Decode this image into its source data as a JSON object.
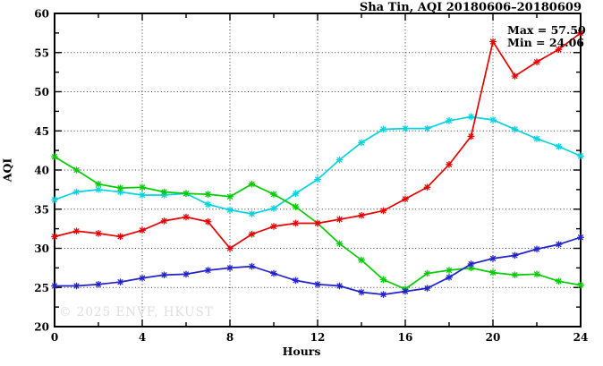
{
  "title": "Sha Tin, AQI 20180606–20180609",
  "legend": {
    "max_label": "Max = 57.50",
    "min_label": "Min = 24.06"
  },
  "watermark": "© 2025 ENVF, HKUST",
  "chart_data": {
    "type": "line",
    "title": "Sha Tin, AQI 20180606–20180609",
    "xlabel": "Hours",
    "ylabel": "AQI",
    "xlim": [
      0,
      24
    ],
    "ylim": [
      20,
      60
    ],
    "x_major_ticks": [
      0,
      4,
      8,
      12,
      16,
      20,
      24
    ],
    "x_minor_ticks": [
      2,
      6,
      10,
      14,
      18,
      22
    ],
    "y_major_ticks": [
      20,
      25,
      30,
      35,
      40,
      45,
      50,
      55,
      60
    ],
    "y_minor_ticks": [
      22.5,
      27.5,
      32.5,
      37.5,
      42.5,
      47.5,
      52.5,
      57.5
    ],
    "grid": true,
    "legend_position": "top-right",
    "max": 57.5,
    "min": 24.06,
    "x": [
      0,
      1,
      2,
      3,
      4,
      5,
      6,
      7,
      8,
      9,
      10,
      11,
      12,
      13,
      14,
      15,
      16,
      17,
      18,
      19,
      20,
      21,
      22,
      23,
      24
    ],
    "series": [
      {
        "name": "series-cyan",
        "color": "#00d4e0",
        "values": [
          36.2,
          37.2,
          37.5,
          37.2,
          36.8,
          36.8,
          37.0,
          35.6,
          34.9,
          34.4,
          35.1,
          37.0,
          38.8,
          41.3,
          43.5,
          45.2,
          45.3,
          45.3,
          46.3,
          46.8,
          46.4,
          45.2,
          44.0,
          43.0,
          41.8
        ]
      },
      {
        "name": "series-green",
        "color": "#00cc00",
        "values": [
          41.7,
          40.0,
          38.2,
          37.7,
          37.8,
          37.2,
          37.0,
          36.9,
          36.6,
          38.2,
          36.9,
          35.3,
          33.2,
          30.6,
          28.5,
          26.0,
          24.8,
          26.8,
          27.2,
          27.5,
          26.9,
          26.6,
          26.7,
          25.8,
          25.3
        ]
      },
      {
        "name": "series-blue",
        "color": "#2222cc",
        "values": [
          25.2,
          25.2,
          25.4,
          25.7,
          26.2,
          26.6,
          26.7,
          27.2,
          27.5,
          27.7,
          26.8,
          25.9,
          25.4,
          25.2,
          24.4,
          24.1,
          24.5,
          24.9,
          26.3,
          28.0,
          28.7,
          29.1,
          29.9,
          30.5,
          31.4
        ]
      },
      {
        "name": "series-red",
        "color": "#e60000",
        "values": [
          31.5,
          32.2,
          31.9,
          31.5,
          32.3,
          33.5,
          34.0,
          33.4,
          30.0,
          31.8,
          32.8,
          33.2,
          33.2,
          33.7,
          34.2,
          34.8,
          36.3,
          37.8,
          40.7,
          44.3,
          56.4,
          52.0,
          53.8,
          55.4,
          57.5
        ]
      }
    ]
  }
}
